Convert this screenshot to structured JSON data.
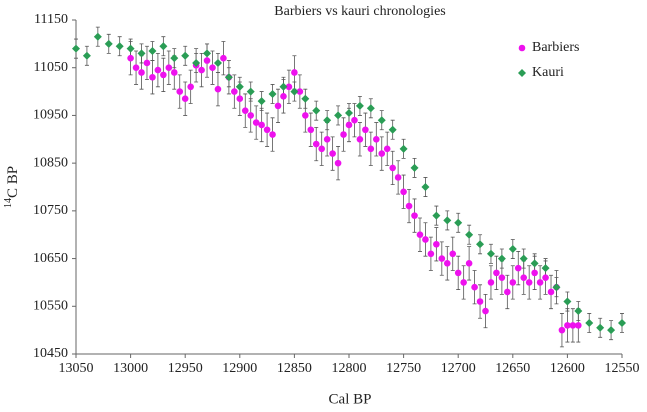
{
  "chart_data": {
    "type": "scatter",
    "title": "Barbiers vs kauri chronologies",
    "x_label": "Cal BP",
    "y_label": {
      "superscript": "14",
      "text": "C BP"
    },
    "xlim": [
      13050,
      12550
    ],
    "xticks": [
      13050,
      13000,
      12950,
      12900,
      12850,
      12800,
      12750,
      12700,
      12650,
      12600,
      12550
    ],
    "ylim": [
      10450,
      11150
    ],
    "yticks": [
      10450,
      10550,
      10650,
      10750,
      10850,
      10950,
      11050,
      11150
    ],
    "grid": false,
    "legend": "upper right",
    "series": [
      {
        "name": "Barbiers",
        "color": "#ee11ee",
        "marker": "circle",
        "error": 35,
        "x": [
          13000,
          12995,
          12990,
          12985,
          12980,
          12975,
          12970,
          12965,
          12960,
          12955,
          12950,
          12945,
          12940,
          12935,
          12930,
          12925,
          12920,
          12915,
          12910,
          12905,
          12900,
          12895,
          12890,
          12885,
          12880,
          12875,
          12870,
          12865,
          12860,
          12855,
          12850,
          12845,
          12840,
          12835,
          12830,
          12825,
          12820,
          12815,
          12810,
          12805,
          12800,
          12795,
          12790,
          12785,
          12780,
          12775,
          12770,
          12765,
          12760,
          12755,
          12750,
          12745,
          12740,
          12735,
          12730,
          12725,
          12720,
          12715,
          12710,
          12705,
          12700,
          12695,
          12690,
          12685,
          12680,
          12675,
          12670,
          12665,
          12660,
          12655,
          12650,
          12645,
          12640,
          12635,
          12630,
          12625,
          12620,
          12615,
          12610,
          12605,
          12600,
          12595,
          12590
        ],
        "values": [
          11070,
          11050,
          11040,
          11060,
          11030,
          11045,
          11035,
          11050,
          11040,
          11000,
          10985,
          11010,
          11055,
          11045,
          11065,
          11050,
          11005,
          11070,
          11030,
          11000,
          10985,
          10960,
          10950,
          10935,
          10930,
          10920,
          10910,
          10970,
          10990,
          11010,
          11040,
          11000,
          10950,
          10920,
          10890,
          10880,
          10900,
          10870,
          10850,
          10910,
          10930,
          10940,
          10900,
          10920,
          10880,
          10900,
          10870,
          10880,
          10840,
          10820,
          10790,
          10760,
          10740,
          10700,
          10690,
          10660,
          10680,
          10650,
          10640,
          10660,
          10620,
          10600,
          10640,
          10590,
          10560,
          10540,
          10600,
          10620,
          10610,
          10580,
          10600,
          10630,
          10610,
          10600,
          10620,
          10600,
          10610,
          10580,
          10590,
          10500,
          10510,
          10510,
          10510
        ]
      },
      {
        "name": "Kauri",
        "color": "#2a9d55",
        "marker": "diamond",
        "error": 20,
        "x": [
          13050,
          13040,
          13030,
          13020,
          13010,
          13000,
          12990,
          12980,
          12970,
          12960,
          12950,
          12940,
          12930,
          12920,
          12910,
          12900,
          12890,
          12880,
          12870,
          12860,
          12850,
          12840,
          12830,
          12820,
          12810,
          12800,
          12790,
          12780,
          12770,
          12760,
          12750,
          12740,
          12730,
          12720,
          12710,
          12700,
          12690,
          12680,
          12670,
          12660,
          12650,
          12640,
          12630,
          12620,
          12610,
          12600,
          12590,
          12580,
          12570,
          12560,
          12550
        ],
        "values": [
          11090,
          11075,
          11115,
          11100,
          11095,
          11090,
          11080,
          11085,
          11095,
          11070,
          11075,
          11060,
          11080,
          11060,
          11030,
          11010,
          11000,
          10980,
          10995,
          11010,
          11000,
          10985,
          10960,
          10940,
          10950,
          10955,
          10970,
          10965,
          10940,
          10920,
          10880,
          10840,
          10800,
          10740,
          10730,
          10725,
          10700,
          10680,
          10660,
          10650,
          10670,
          10650,
          10640,
          10630,
          10590,
          10560,
          10540,
          10515,
          10505,
          10500,
          10515
        ]
      }
    ]
  }
}
